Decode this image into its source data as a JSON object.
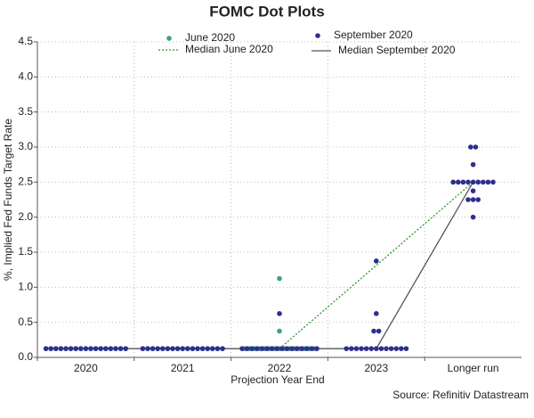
{
  "chart_data": {
    "type": "dot-plot",
    "title": "FOMC Dot Plots",
    "x_label": "Projection Year End",
    "y_label": "%, Implied Fed Funds Target Rate",
    "source": "Source: Refinitiv Datastream",
    "categories": [
      "2020",
      "2021",
      "2022",
      "2023",
      "Longer run"
    ],
    "ylim": [
      0,
      4.5
    ],
    "yticks": [
      {
        "value": 0,
        "label": "0.0"
      },
      {
        "value": 0.5,
        "label": "0.5"
      },
      {
        "value": 1,
        "label": "1.0"
      },
      {
        "value": 1.5,
        "label": "1.5"
      },
      {
        "value": 2,
        "label": "2.0"
      },
      {
        "value": 2.5,
        "label": "2.5"
      },
      {
        "value": 3,
        "label": "3.0"
      },
      {
        "value": 3.5,
        "label": "3.5"
      },
      {
        "value": 4,
        "label": "4.0"
      },
      {
        "value": 4.5,
        "label": "4.5"
      }
    ],
    "grid": true,
    "series": [
      {
        "name": "June 2020",
        "type": "scatter",
        "color": "#3f9f82",
        "values": [
          [
            0.125,
            0.125,
            0.125,
            0.125,
            0.125,
            0.125,
            0.125,
            0.125,
            0.125,
            0.125,
            0.125,
            0.125,
            0.125,
            0.125,
            0.125,
            0.125,
            0.125
          ],
          [
            0.125,
            0.125,
            0.125,
            0.125,
            0.125,
            0.125,
            0.125,
            0.125,
            0.125,
            0.125,
            0.125,
            0.125,
            0.125,
            0.125,
            0.125,
            0.125,
            0.125
          ],
          [
            0.125,
            0.125,
            0.125,
            0.125,
            0.125,
            0.125,
            0.125,
            0.125,
            0.125,
            0.125,
            0.125,
            0.125,
            0.125,
            0.125,
            0.125,
            0.375,
            1.125
          ],
          [],
          []
        ]
      },
      {
        "name": "September 2020",
        "type": "scatter",
        "color": "#2e2e8f",
        "values": [
          [
            0.125,
            0.125,
            0.125,
            0.125,
            0.125,
            0.125,
            0.125,
            0.125,
            0.125,
            0.125,
            0.125,
            0.125,
            0.125,
            0.125,
            0.125,
            0.125,
            0.125
          ],
          [
            0.125,
            0.125,
            0.125,
            0.125,
            0.125,
            0.125,
            0.125,
            0.125,
            0.125,
            0.125,
            0.125,
            0.125,
            0.125,
            0.125,
            0.125,
            0.125,
            0.125
          ],
          [
            0.125,
            0.125,
            0.125,
            0.125,
            0.125,
            0.125,
            0.125,
            0.125,
            0.125,
            0.125,
            0.125,
            0.125,
            0.125,
            0.125,
            0.125,
            0.125,
            0.625
          ],
          [
            0.125,
            0.125,
            0.125,
            0.125,
            0.125,
            0.125,
            0.125,
            0.125,
            0.125,
            0.125,
            0.125,
            0.125,
            0.125,
            0.375,
            0.375,
            0.625,
            1.375
          ],
          [
            2,
            2.25,
            2.25,
            2.25,
            2.375,
            2.5,
            2.5,
            2.5,
            2.5,
            2.5,
            2.5,
            2.5,
            2.5,
            2.5,
            2.75,
            3,
            3
          ]
        ]
      },
      {
        "name": "Median June 2020",
        "type": "line",
        "color": "#2a9a2a",
        "dash": "2 2",
        "x": [
          "2022",
          "Longer run"
        ],
        "values": [
          0.125,
          2.5
        ]
      },
      {
        "name": "Median September 2020",
        "type": "line",
        "color": "#555555",
        "x": [
          "2020",
          "2021",
          "2022",
          "2023",
          "Longer run"
        ],
        "values": [
          0.125,
          0.125,
          0.125,
          0.125,
          2.5
        ]
      }
    ]
  }
}
